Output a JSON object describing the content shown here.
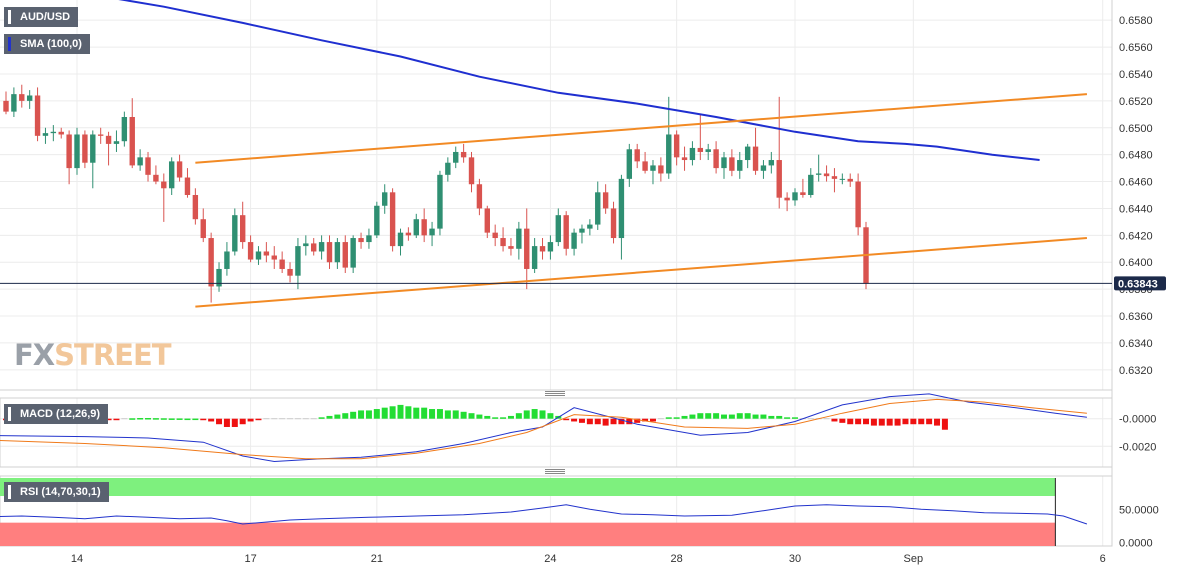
{
  "labels": {
    "pair": "AUD/USD",
    "sma": "SMA (100,0)",
    "macd": "MACD (12,26,9)",
    "rsi": "RSI (14,70,30,1)"
  },
  "logo": {
    "part1": "FX",
    "part2": "STREET"
  },
  "colors": {
    "bull": "#2f8f72",
    "bear": "#d9534f",
    "sma": "#1f2fd0",
    "channel": "#f28a24",
    "macd_pos": "#22dd33",
    "macd_neg": "#ee1111",
    "macd_line": "#2233cc",
    "signal_line": "#f07a1a",
    "rsi_upper": "#7ef07e",
    "rsi_lower": "#ff7f7f",
    "rsi_line": "#2233cc"
  },
  "chart_data": [
    {
      "type": "candlestick",
      "title": "AUD/USD",
      "x_tick_labels": [
        "14",
        "17",
        "21",
        "24",
        "28",
        "30",
        "Sep",
        "6"
      ],
      "y_tick_labels": [
        "0.6580",
        "0.6560",
        "0.6540",
        "0.6520",
        "0.6500",
        "0.6480",
        "0.6460",
        "0.6440",
        "0.6420",
        "0.6400",
        "0.6380",
        "0.6360",
        "0.6340",
        "0.6320"
      ],
      "ylim": [
        0.6305,
        0.6595
      ],
      "last_price": "0.63843",
      "candles": [
        [
          0.652,
          0.6527,
          0.651,
          0.6512
        ],
        [
          0.6512,
          0.653,
          0.6508,
          0.6525
        ],
        [
          0.6525,
          0.6532,
          0.6515,
          0.652
        ],
        [
          0.652,
          0.6528,
          0.6514,
          0.6524
        ],
        [
          0.6524,
          0.653,
          0.649,
          0.6494
        ],
        [
          0.6494,
          0.65,
          0.6488,
          0.6496
        ],
        [
          0.6496,
          0.6502,
          0.649,
          0.6497
        ],
        [
          0.6497,
          0.65,
          0.6492,
          0.6495
        ],
        [
          0.6495,
          0.6498,
          0.6458,
          0.647
        ],
        [
          0.647,
          0.65,
          0.6465,
          0.6495
        ],
        [
          0.6495,
          0.6498,
          0.647,
          0.6474
        ],
        [
          0.6474,
          0.6498,
          0.6455,
          0.6495
        ],
        [
          0.6495,
          0.65,
          0.6488,
          0.6494
        ],
        [
          0.6494,
          0.6497,
          0.6472,
          0.6488
        ],
        [
          0.6488,
          0.6498,
          0.6482,
          0.649
        ],
        [
          0.649,
          0.6512,
          0.6486,
          0.6508
        ],
        [
          0.6508,
          0.6522,
          0.647,
          0.6472
        ],
        [
          0.6472,
          0.6484,
          0.6468,
          0.6478
        ],
        [
          0.6478,
          0.6482,
          0.646,
          0.6465
        ],
        [
          0.6465,
          0.6472,
          0.6458,
          0.646
        ],
        [
          0.646,
          0.6466,
          0.643,
          0.6455
        ],
        [
          0.6455,
          0.6478,
          0.645,
          0.6475
        ],
        [
          0.6475,
          0.648,
          0.646,
          0.6463
        ],
        [
          0.6463,
          0.647,
          0.6448,
          0.645
        ],
        [
          0.645,
          0.6455,
          0.6428,
          0.6432
        ],
        [
          0.6432,
          0.644,
          0.6415,
          0.6418
        ],
        [
          0.6418,
          0.6422,
          0.637,
          0.6382
        ],
        [
          0.6382,
          0.64,
          0.6378,
          0.6395
        ],
        [
          0.6395,
          0.6415,
          0.639,
          0.6408
        ],
        [
          0.6408,
          0.644,
          0.6405,
          0.6435
        ],
        [
          0.6435,
          0.6445,
          0.641,
          0.6415
        ],
        [
          0.6415,
          0.642,
          0.64,
          0.6402
        ],
        [
          0.6402,
          0.6412,
          0.6398,
          0.6408
        ],
        [
          0.6408,
          0.6415,
          0.64,
          0.6405
        ],
        [
          0.6405,
          0.6412,
          0.6395,
          0.6402
        ],
        [
          0.6402,
          0.6408,
          0.6392,
          0.6395
        ],
        [
          0.6395,
          0.64,
          0.6385,
          0.639
        ],
        [
          0.639,
          0.6418,
          0.638,
          0.6412
        ],
        [
          0.6412,
          0.642,
          0.6405,
          0.6414
        ],
        [
          0.6414,
          0.6418,
          0.6405,
          0.6408
        ],
        [
          0.6408,
          0.642,
          0.6402,
          0.6415
        ],
        [
          0.6415,
          0.642,
          0.6395,
          0.64
        ],
        [
          0.64,
          0.6418,
          0.6395,
          0.6415
        ],
        [
          0.6415,
          0.642,
          0.6392,
          0.6396
        ],
        [
          0.6396,
          0.642,
          0.6392,
          0.6418
        ],
        [
          0.6418,
          0.6422,
          0.641,
          0.6415
        ],
        [
          0.6415,
          0.6425,
          0.641,
          0.642
        ],
        [
          0.642,
          0.6445,
          0.6418,
          0.6442
        ],
        [
          0.6442,
          0.6458,
          0.6436,
          0.6452
        ],
        [
          0.6452,
          0.6455,
          0.6408,
          0.6412
        ],
        [
          0.6412,
          0.6425,
          0.6405,
          0.6422
        ],
        [
          0.6422,
          0.6426,
          0.6416,
          0.642
        ],
        [
          0.642,
          0.6436,
          0.6418,
          0.6432
        ],
        [
          0.6432,
          0.644,
          0.6415,
          0.642
        ],
        [
          0.642,
          0.643,
          0.6412,
          0.6425
        ],
        [
          0.6425,
          0.6468,
          0.642,
          0.6465
        ],
        [
          0.6465,
          0.6478,
          0.646,
          0.6474
        ],
        [
          0.6474,
          0.6486,
          0.647,
          0.6482
        ],
        [
          0.6482,
          0.6488,
          0.6474,
          0.6478
        ],
        [
          0.6478,
          0.6482,
          0.6452,
          0.6458
        ],
        [
          0.6458,
          0.6462,
          0.6435,
          0.644
        ],
        [
          0.644,
          0.6442,
          0.6418,
          0.6422
        ],
        [
          0.6422,
          0.6428,
          0.6412,
          0.6418
        ],
        [
          0.6418,
          0.6426,
          0.6408,
          0.6412
        ],
        [
          0.6412,
          0.6418,
          0.6405,
          0.641
        ],
        [
          0.641,
          0.643,
          0.6402,
          0.6425
        ],
        [
          0.6425,
          0.644,
          0.638,
          0.6395
        ],
        [
          0.6395,
          0.6418,
          0.6392,
          0.6412
        ],
        [
          0.6412,
          0.6418,
          0.6402,
          0.6408
        ],
        [
          0.6408,
          0.642,
          0.6402,
          0.6415
        ],
        [
          0.6415,
          0.644,
          0.6412,
          0.6435
        ],
        [
          0.6435,
          0.6438,
          0.6405,
          0.641
        ],
        [
          0.641,
          0.6425,
          0.6405,
          0.6422
        ],
        [
          0.6422,
          0.6428,
          0.6414,
          0.6425
        ],
        [
          0.6425,
          0.6432,
          0.642,
          0.6428
        ],
        [
          0.6428,
          0.646,
          0.6424,
          0.6452
        ],
        [
          0.6452,
          0.6458,
          0.6436,
          0.644
        ],
        [
          0.644,
          0.6445,
          0.6414,
          0.6418
        ],
        [
          0.6418,
          0.6465,
          0.6402,
          0.6462
        ],
        [
          0.6462,
          0.6488,
          0.6456,
          0.6484
        ],
        [
          0.6484,
          0.6488,
          0.647,
          0.6475
        ],
        [
          0.6475,
          0.6482,
          0.6466,
          0.6468
        ],
        [
          0.6468,
          0.6476,
          0.6458,
          0.6472
        ],
        [
          0.6472,
          0.6478,
          0.646,
          0.6466
        ],
        [
          0.6466,
          0.6523,
          0.6462,
          0.6495
        ],
        [
          0.6495,
          0.6498,
          0.6472,
          0.6478
        ],
        [
          0.6478,
          0.6486,
          0.6468,
          0.6476
        ],
        [
          0.6476,
          0.649,
          0.6472,
          0.6485
        ],
        [
          0.6485,
          0.651,
          0.6476,
          0.6482
        ],
        [
          0.6482,
          0.6488,
          0.6476,
          0.6484
        ],
        [
          0.6484,
          0.649,
          0.6466,
          0.647
        ],
        [
          0.647,
          0.6482,
          0.6462,
          0.6478
        ],
        [
          0.6478,
          0.6484,
          0.6464,
          0.6468
        ],
        [
          0.6468,
          0.6482,
          0.6462,
          0.6476
        ],
        [
          0.6476,
          0.6488,
          0.647,
          0.6486
        ],
        [
          0.6486,
          0.65,
          0.6465,
          0.6468
        ],
        [
          0.6468,
          0.6476,
          0.6462,
          0.6472
        ],
        [
          0.6472,
          0.6482,
          0.6466,
          0.6476
        ],
        [
          0.6476,
          0.6523,
          0.644,
          0.6448
        ],
        [
          0.6448,
          0.6452,
          0.6438,
          0.6446
        ],
        [
          0.6446,
          0.6455,
          0.6442,
          0.6452
        ],
        [
          0.6452,
          0.6462,
          0.6448,
          0.645
        ],
        [
          0.645,
          0.647,
          0.6448,
          0.6465
        ],
        [
          0.6465,
          0.648,
          0.646,
          0.6466
        ],
        [
          0.6466,
          0.6472,
          0.646,
          0.6464
        ],
        [
          0.6464,
          0.647,
          0.6452,
          0.6462
        ],
        [
          0.6462,
          0.6466,
          0.6458,
          0.6462
        ],
        [
          0.6462,
          0.6466,
          0.6456,
          0.646
        ],
        [
          0.646,
          0.6466,
          0.642,
          0.6426
        ],
        [
          0.6426,
          0.643,
          0.638,
          0.6384
        ]
      ],
      "sma": [
        [
          -5,
          0.6612
        ],
        [
          12,
          0.6598
        ],
        [
          20,
          0.659
        ],
        [
          30,
          0.6578
        ],
        [
          40,
          0.6565
        ],
        [
          50,
          0.6553
        ],
        [
          60,
          0.6538
        ],
        [
          70,
          0.6526
        ],
        [
          80,
          0.6518
        ],
        [
          90,
          0.6508
        ],
        [
          100,
          0.6497
        ],
        [
          108,
          0.649
        ],
        [
          114,
          0.6488
        ],
        [
          118,
          0.6486
        ],
        [
          125,
          0.648
        ],
        [
          131,
          0.6476
        ]
      ],
      "channel_lines": [
        {
          "points": [
            [
              24,
              0.6474
            ],
            [
              137,
              0.6525
            ]
          ]
        },
        {
          "points": [
            [
              24,
              0.6367
            ],
            [
              137,
              0.6418
            ]
          ]
        }
      ]
    },
    {
      "type": "bar",
      "title": "MACD (12,26,9)",
      "y_tick_labels": [
        "-0.0000",
        "-0.0020"
      ],
      "ylim": [
        -0.0035,
        0.0015
      ],
      "histogram": [
        -0.0001,
        -0.0001,
        -0.0001,
        -0.0001,
        -0.0001,
        -0.0001,
        -0.0001,
        -0.0001,
        -0.0001,
        -0.0001,
        -0.0001,
        -0.0001,
        -0.0001,
        -0.0001,
        -0.0001,
        0,
        3e-05,
        5e-05,
        5e-05,
        4e-05,
        3e-05,
        2e-05,
        2e-05,
        1e-05,
        1e-05,
        -0.0001,
        -0.0002,
        -0.0004,
        -0.0006,
        -0.0006,
        -0.0004,
        -0.0002,
        -0.0001,
        0,
        0,
        0,
        0,
        0,
        0,
        0,
        0.0001,
        0.0002,
        0.0003,
        0.0004,
        0.0005,
        0.0006,
        0.0006,
        0.0007,
        0.0008,
        0.0009,
        0.001,
        0.0009,
        0.0008,
        0.0008,
        0.0007,
        0.0007,
        0.0006,
        0.0006,
        0.0005,
        0.0004,
        0.0003,
        0.0002,
        0.0001,
        0.0001,
        0.0002,
        0.0004,
        0.0006,
        0.0007,
        0.0006,
        0.0004,
        0.0002,
        -0.0001,
        -0.0002,
        -0.0003,
        -0.0004,
        -0.0004,
        -0.0005,
        -0.0004,
        -0.0004,
        -0.0004,
        -0.0003,
        -0.0002,
        -0.0002,
        0,
        0.0001,
        0.0001,
        0.0002,
        0.0003,
        0.0004,
        0.0004,
        0.0004,
        0.0003,
        0.0003,
        0.0004,
        0.0004,
        0.0003,
        0.0003,
        0.0002,
        0.0002,
        0.0001,
        0.0001,
        0,
        0,
        0,
        0,
        -0.0002,
        -0.0003,
        -0.0004,
        -0.0004,
        -0.0004,
        -0.0005,
        -0.0005,
        -0.0005,
        -0.0005,
        -0.0004,
        -0.0004,
        -0.0004,
        -0.0004,
        -0.0005,
        -0.0008
      ],
      "macd_line": [
        [
          -5,
          -0.0012
        ],
        [
          10,
          -0.0013
        ],
        [
          18,
          -0.0014
        ],
        [
          25,
          -0.0017
        ],
        [
          30,
          -0.0027
        ],
        [
          34,
          -0.0031
        ],
        [
          40,
          -0.0029
        ],
        [
          45,
          -0.0028
        ],
        [
          52,
          -0.0024
        ],
        [
          58,
          -0.0018
        ],
        [
          64,
          -0.001
        ],
        [
          68,
          -0.0006
        ],
        [
          72,
          0.0008
        ],
        [
          76,
          0.0002
        ],
        [
          80,
          -0.0004
        ],
        [
          88,
          -0.0012
        ],
        [
          94,
          -0.001
        ],
        [
          100,
          -0.0002
        ],
        [
          106,
          0.001
        ],
        [
          112,
          0.0016
        ],
        [
          117,
          0.0018
        ],
        [
          122,
          0.0012
        ],
        [
          128,
          0.0008
        ],
        [
          133,
          0.0004
        ],
        [
          137,
          0.0001
        ]
      ],
      "signal_line": [
        [
          -5,
          -0.0015
        ],
        [
          10,
          -0.0018
        ],
        [
          20,
          -0.0021
        ],
        [
          30,
          -0.0026
        ],
        [
          38,
          -0.0029
        ],
        [
          45,
          -0.0029
        ],
        [
          52,
          -0.0025
        ],
        [
          60,
          -0.0018
        ],
        [
          66,
          -0.001
        ],
        [
          72,
          0.0003
        ],
        [
          78,
          0.0001
        ],
        [
          86,
          -0.0006
        ],
        [
          94,
          -0.0007
        ],
        [
          100,
          -0.0004
        ],
        [
          106,
          0.0004
        ],
        [
          112,
          0.0011
        ],
        [
          118,
          0.0014
        ],
        [
          124,
          0.0012
        ],
        [
          130,
          0.0008
        ],
        [
          137,
          0.0004
        ]
      ]
    },
    {
      "type": "line",
      "title": "RSI (14,70,30,1)",
      "y_tick_labels": [
        "50.0000",
        "0.0000"
      ],
      "ylim": [
        -5,
        100
      ],
      "upper_band": 70,
      "lower_band": 30,
      "rsi": [
        [
          -5,
          38
        ],
        [
          2,
          40
        ],
        [
          6,
          38
        ],
        [
          10,
          36
        ],
        [
          14,
          40
        ],
        [
          18,
          38
        ],
        [
          22,
          36
        ],
        [
          26,
          37
        ],
        [
          28,
          33
        ],
        [
          30,
          28
        ],
        [
          32,
          30
        ],
        [
          36,
          34
        ],
        [
          40,
          36
        ],
        [
          46,
          38
        ],
        [
          52,
          40
        ],
        [
          58,
          42
        ],
        [
          64,
          46
        ],
        [
          68,
          52
        ],
        [
          71,
          57
        ],
        [
          74,
          50
        ],
        [
          78,
          43
        ],
        [
          82,
          42
        ],
        [
          86,
          40
        ],
        [
          92,
          41
        ],
        [
          96,
          48
        ],
        [
          100,
          55
        ],
        [
          104,
          57
        ],
        [
          108,
          55
        ],
        [
          112,
          54
        ],
        [
          116,
          50
        ],
        [
          120,
          48
        ],
        [
          124,
          45
        ],
        [
          128,
          44
        ],
        [
          132,
          43
        ],
        [
          134,
          40
        ],
        [
          137,
          28
        ]
      ]
    }
  ]
}
